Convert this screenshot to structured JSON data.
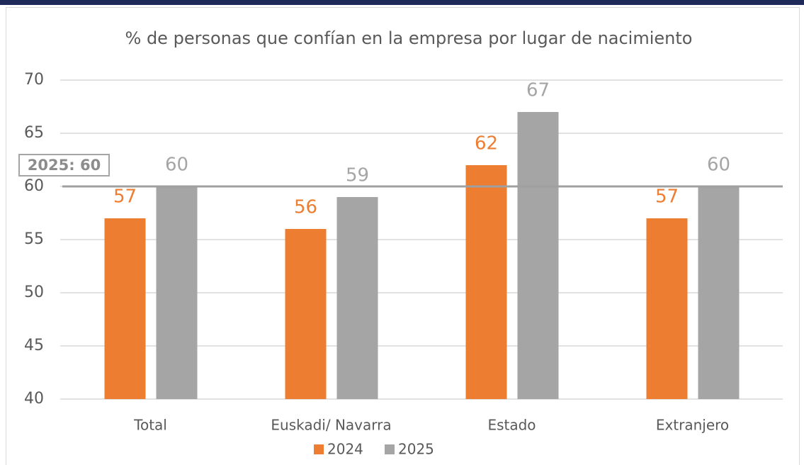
{
  "chart_data": {
    "type": "bar",
    "title": "% de personas que confían en la empresa por lugar de nacimiento",
    "categories": [
      "Total",
      "Euskadi/ Navarra",
      "Estado",
      "Extranjero"
    ],
    "series": [
      {
        "name": "2024",
        "color": "#ed7d31",
        "values": [
          57,
          56,
          62,
          57
        ]
      },
      {
        "name": "2025",
        "color": "#a5a5a5",
        "values": [
          60,
          59,
          67,
          60
        ]
      }
    ],
    "ylim": [
      40,
      70
    ],
    "yticks": [
      40,
      45,
      50,
      55,
      60,
      65,
      70
    ],
    "grid": true,
    "reference_line": {
      "value": 60,
      "label": "2025: 60"
    },
    "legend": "bottom"
  }
}
